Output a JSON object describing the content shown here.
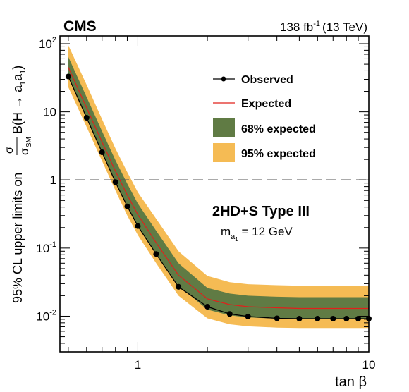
{
  "header": {
    "experiment": "CMS",
    "lumi_value": "138 fb",
    "lumi_exp": "-1",
    "energy": "(13 TeV)"
  },
  "chart_data": {
    "type": "line",
    "xlabel": "tan β",
    "ylabel_prefix": "95% CL upper limits on",
    "ylabel_sigma": "σ",
    "ylabel_sigma_sm": "σ",
    "ylabel_sm_sub": "SM",
    "ylabel_br": "B(H → a",
    "ylabel_br_sub1": "1",
    "ylabel_br_mid": "a",
    "ylabel_br_sub2": "1",
    "ylabel_br_end": ")",
    "xscale": "log",
    "yscale": "log",
    "xlim": [
      0.46,
      10
    ],
    "ylim": [
      0.003,
      130
    ],
    "x_ticks": [
      {
        "value": 1,
        "label": "1"
      },
      {
        "value": 10,
        "label": "10"
      }
    ],
    "y_ticks": [
      {
        "value": 0.01,
        "base": "10",
        "exp": "-2"
      },
      {
        "value": 0.1,
        "base": "10",
        "exp": "-1"
      },
      {
        "value": 1,
        "base": "1",
        "exp": ""
      },
      {
        "value": 10,
        "base": "10",
        "exp": ""
      },
      {
        "value": 100,
        "base": "10",
        "exp": "2"
      }
    ],
    "reference_line": {
      "y": 1,
      "style": "dashed"
    },
    "annotation_title": "2HD+S Type III",
    "annotation_mass_m": "m",
    "annotation_mass_sub": "a",
    "annotation_mass_subsub": "1",
    "annotation_mass_value": " = 12 GeV",
    "legend_position": "top-right",
    "series": [
      {
        "name": "Observed",
        "kind": "observed",
        "color": "#000000",
        "x": [
          0.5,
          0.6,
          0.7,
          0.8,
          0.9,
          1.0,
          1.2,
          1.5,
          2.0,
          2.5,
          3.0,
          4.0,
          5.0,
          6.0,
          7.0,
          8.0,
          9.0,
          10.0
        ],
        "y": [
          33,
          8.2,
          2.55,
          0.93,
          0.41,
          0.21,
          0.082,
          0.027,
          0.0138,
          0.0108,
          0.0099,
          0.0093,
          0.0092,
          0.0092,
          0.0092,
          0.0092,
          0.0092,
          0.0092
        ]
      },
      {
        "name": "Expected",
        "kind": "expected",
        "color": "#e0201b",
        "x": [
          0.5,
          0.6,
          0.7,
          0.8,
          0.9,
          1.0,
          1.2,
          1.5,
          2.0,
          2.5,
          3.0,
          4.0,
          5.0,
          6.0,
          7.0,
          8.0,
          9.0,
          10.0
        ],
        "y": [
          45,
          11.5,
          3.6,
          1.35,
          0.6,
          0.31,
          0.12,
          0.04,
          0.018,
          0.0148,
          0.0138,
          0.0133,
          0.013,
          0.013,
          0.013,
          0.013,
          0.013,
          0.013
        ]
      },
      {
        "name": "68% expected",
        "kind": "band",
        "color": "#607b44",
        "x": [
          0.5,
          0.6,
          0.7,
          0.8,
          0.9,
          1.0,
          1.2,
          1.5,
          2.0,
          2.5,
          3.0,
          4.0,
          5.0,
          6.0,
          7.0,
          8.0,
          9.0,
          10.0
        ],
        "low": [
          32,
          8.2,
          2.6,
          0.95,
          0.42,
          0.21,
          0.083,
          0.028,
          0.0125,
          0.0103,
          0.0096,
          0.0092,
          0.009,
          0.009,
          0.009,
          0.009,
          0.009,
          0.009
        ],
        "high": [
          64,
          16.5,
          5.2,
          1.95,
          0.88,
          0.45,
          0.18,
          0.06,
          0.026,
          0.0215,
          0.02,
          0.0193,
          0.019,
          0.019,
          0.019,
          0.019,
          0.019,
          0.019
        ]
      },
      {
        "name": "95% expected",
        "kind": "band",
        "color": "#f5bb54",
        "x": [
          0.5,
          0.6,
          0.7,
          0.8,
          0.9,
          1.0,
          1.2,
          1.5,
          2.0,
          2.5,
          3.0,
          4.0,
          5.0,
          6.0,
          7.0,
          8.0,
          9.0,
          10.0
        ],
        "low": [
          23,
          6.0,
          1.9,
          0.7,
          0.3,
          0.155,
          0.06,
          0.02,
          0.0093,
          0.0076,
          0.0071,
          0.0068,
          0.0067,
          0.0067,
          0.0067,
          0.0067,
          0.0067,
          0.0067
        ],
        "high": [
          95,
          25,
          7.8,
          2.9,
          1.3,
          0.66,
          0.27,
          0.09,
          0.039,
          0.0315,
          0.0295,
          0.0285,
          0.028,
          0.028,
          0.028,
          0.028,
          0.028,
          0.028
        ]
      }
    ]
  }
}
